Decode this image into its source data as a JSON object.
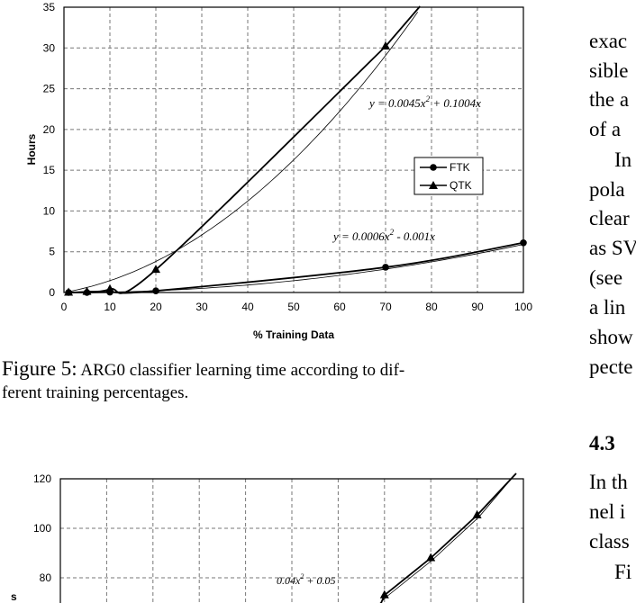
{
  "figure5": {
    "caption_label": "Figure 5:",
    "caption_line1": "ARG0 classifier learning time according to dif-",
    "caption_line2": "ferent training percentages.",
    "chart_data": {
      "type": "line",
      "title": "",
      "xlabel": "% Training Data",
      "ylabel": "Hours",
      "xlim": [
        0,
        100
      ],
      "ylim": [
        0,
        35
      ],
      "xticks": [
        "0",
        "10",
        "20",
        "30",
        "40",
        "50",
        "60",
        "70",
        "80",
        "90",
        "100"
      ],
      "yticks": [
        "0",
        "5",
        "10",
        "15",
        "20",
        "25",
        "30",
        "35"
      ],
      "grid": true,
      "legend_position": "right",
      "series": [
        {
          "name": "FTK",
          "marker": "circle",
          "x": [
            1,
            5,
            10,
            20,
            70,
            100
          ],
          "y": [
            0.0,
            0.0,
            0.05,
            0.2,
            3.1,
            6.1
          ]
        },
        {
          "name": "QTK",
          "marker": "triangle",
          "x": [
            1,
            5,
            10,
            20,
            70
          ],
          "y": [
            0.0,
            0.1,
            0.4,
            2.8,
            30.2
          ]
        }
      ],
      "fit_curves": [
        {
          "a": 0.0045,
          "b": 0.1004
        },
        {
          "a": 0.0006,
          "b": -0.001
        }
      ],
      "annotations": {
        "qtk_fit": "y = 0.0045x",
        "qtk_fit_tail": " + 0.1004x",
        "ftk_fit": "y = 0.0006x",
        "ftk_fit_tail": " - 0.001x",
        "sup": "2"
      }
    }
  },
  "figure6": {
    "chart_data": {
      "type": "line",
      "xlabel": "",
      "ylabel": "s",
      "ylim": [
        60,
        120
      ],
      "yticks": [
        "80",
        "100",
        "120"
      ],
      "grid": true,
      "series": [
        {
          "name": "",
          "marker": "triangle",
          "x": [
            70,
            80,
            90
          ],
          "y": [
            73,
            88,
            105.3
          ]
        }
      ],
      "annotations": {
        "fit_partial": "0.04x",
        "fit_tail": "0.05",
        "sup": "2"
      }
    }
  },
  "right_column": {
    "lines": [
      "exac",
      "sible",
      "the a",
      "of a",
      "In",
      "pola",
      "clear",
      "as SV",
      "(see",
      "a lin",
      "show",
      "pecte"
    ],
    "heading": "4.3",
    "lines2": [
      "In th",
      "nel i",
      "class",
      "Fi"
    ]
  }
}
